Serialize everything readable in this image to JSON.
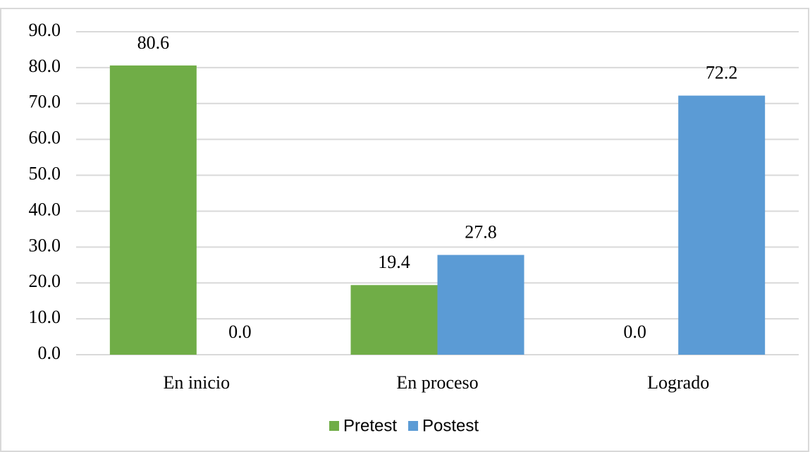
{
  "chart_data": {
    "type": "bar",
    "categories": [
      "En inicio",
      "En proceso",
      "Logrado"
    ],
    "series": [
      {
        "name": "Pretest",
        "color": "#70ad47",
        "values": [
          80.6,
          19.4,
          0
        ],
        "value_labels": [
          "80.6",
          "19.4",
          "0.0"
        ]
      },
      {
        "name": "Postest",
        "color": "#5b9bd5",
        "values": [
          0,
          27.8,
          72.2
        ],
        "value_labels": [
          "0.0",
          "27.8",
          "72.2"
        ]
      }
    ],
    "ylim": [
      0,
      90
    ],
    "yticks": [
      {
        "value": 0,
        "label": "0.0"
      },
      {
        "value": 10,
        "label": "10.0"
      },
      {
        "value": 20,
        "label": "20.0"
      },
      {
        "value": 30,
        "label": "30.0"
      },
      {
        "value": 40,
        "label": "40.0"
      },
      {
        "value": 50,
        "label": "50.0"
      },
      {
        "value": 60,
        "label": "60.0"
      },
      {
        "value": 70,
        "label": "70.0"
      },
      {
        "value": 80,
        "label": "80.0"
      },
      {
        "value": 90,
        "label": "90.0"
      }
    ],
    "grid": true,
    "legend": "bottom"
  }
}
